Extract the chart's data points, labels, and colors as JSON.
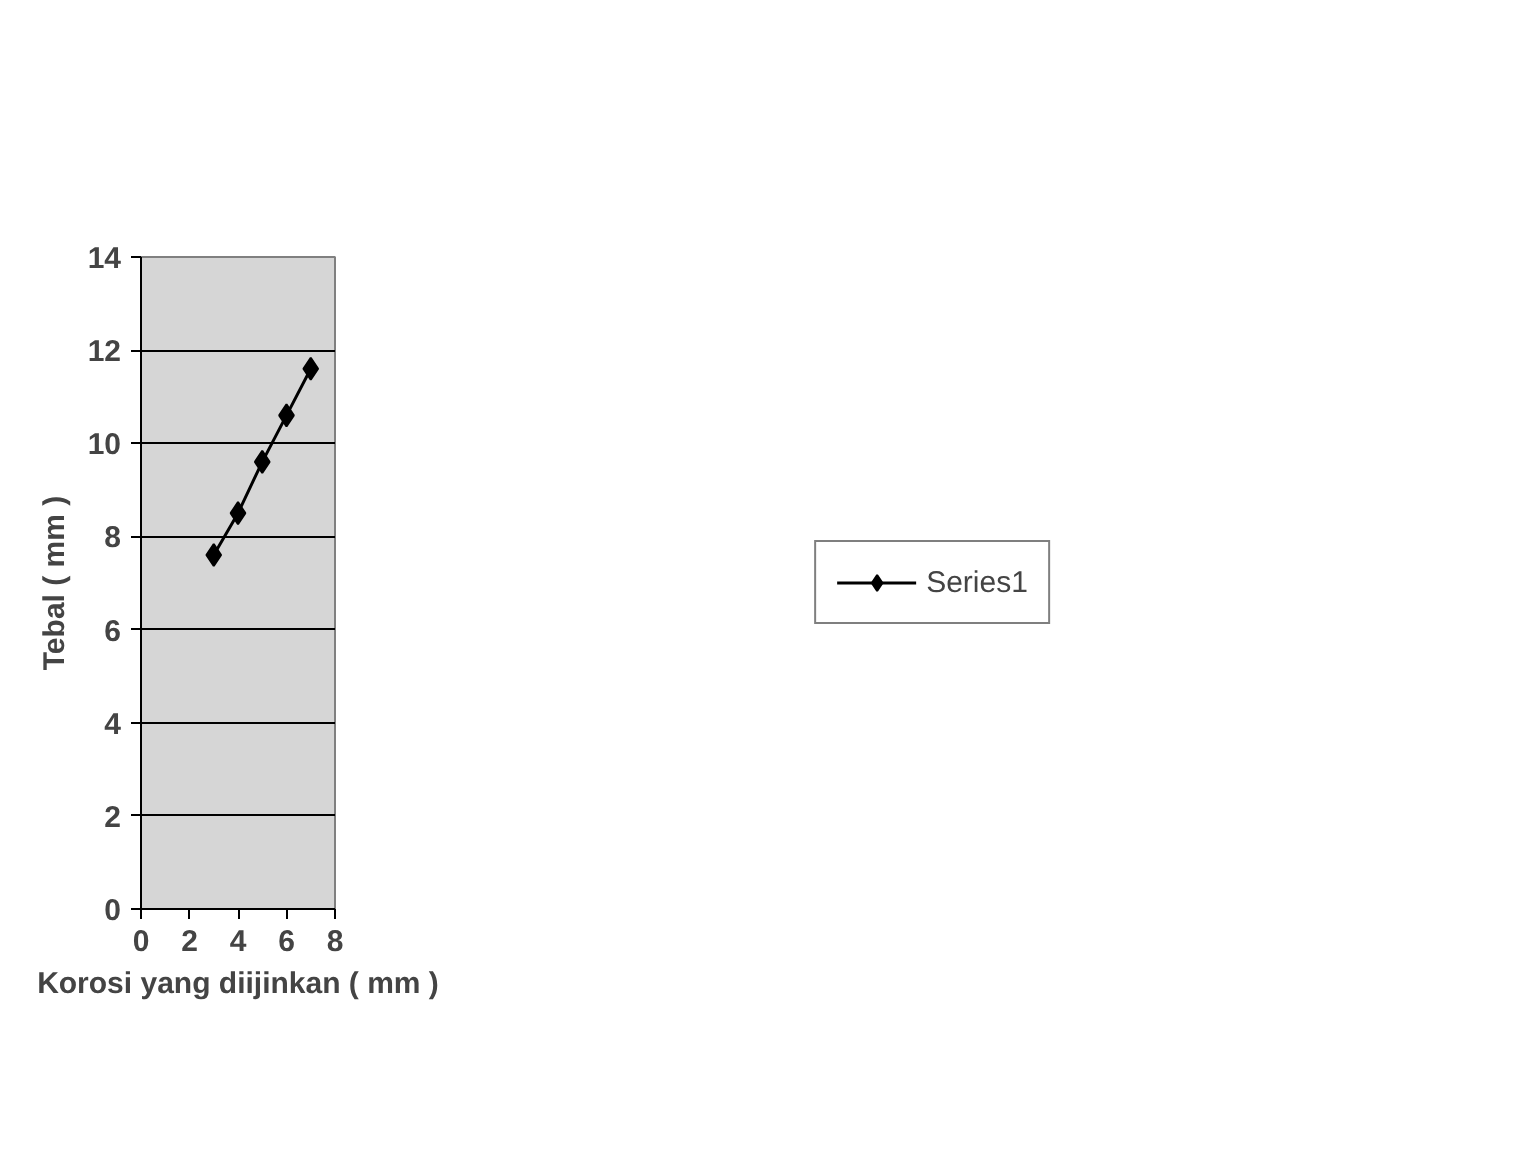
{
  "chart_data": {
    "type": "line",
    "xlabel": "Korosi yang diijinkan ( mm )",
    "ylabel": "Tebal ( mm )",
    "x": [
      3,
      4,
      5,
      6,
      7
    ],
    "series": [
      {
        "name": "Series1",
        "color": "#000000",
        "values": [
          7.6,
          8.5,
          9.6,
          10.6,
          11.6
        ]
      }
    ],
    "xlim": [
      0,
      8
    ],
    "xticks": [
      0,
      2,
      4,
      6,
      8
    ],
    "ylim": [
      0,
      14
    ],
    "yticks": [
      0,
      2,
      4,
      6,
      8,
      10,
      12,
      14
    ],
    "grid": "y",
    "legend": "right",
    "marker": "diamond",
    "line_style": "solid"
  }
}
